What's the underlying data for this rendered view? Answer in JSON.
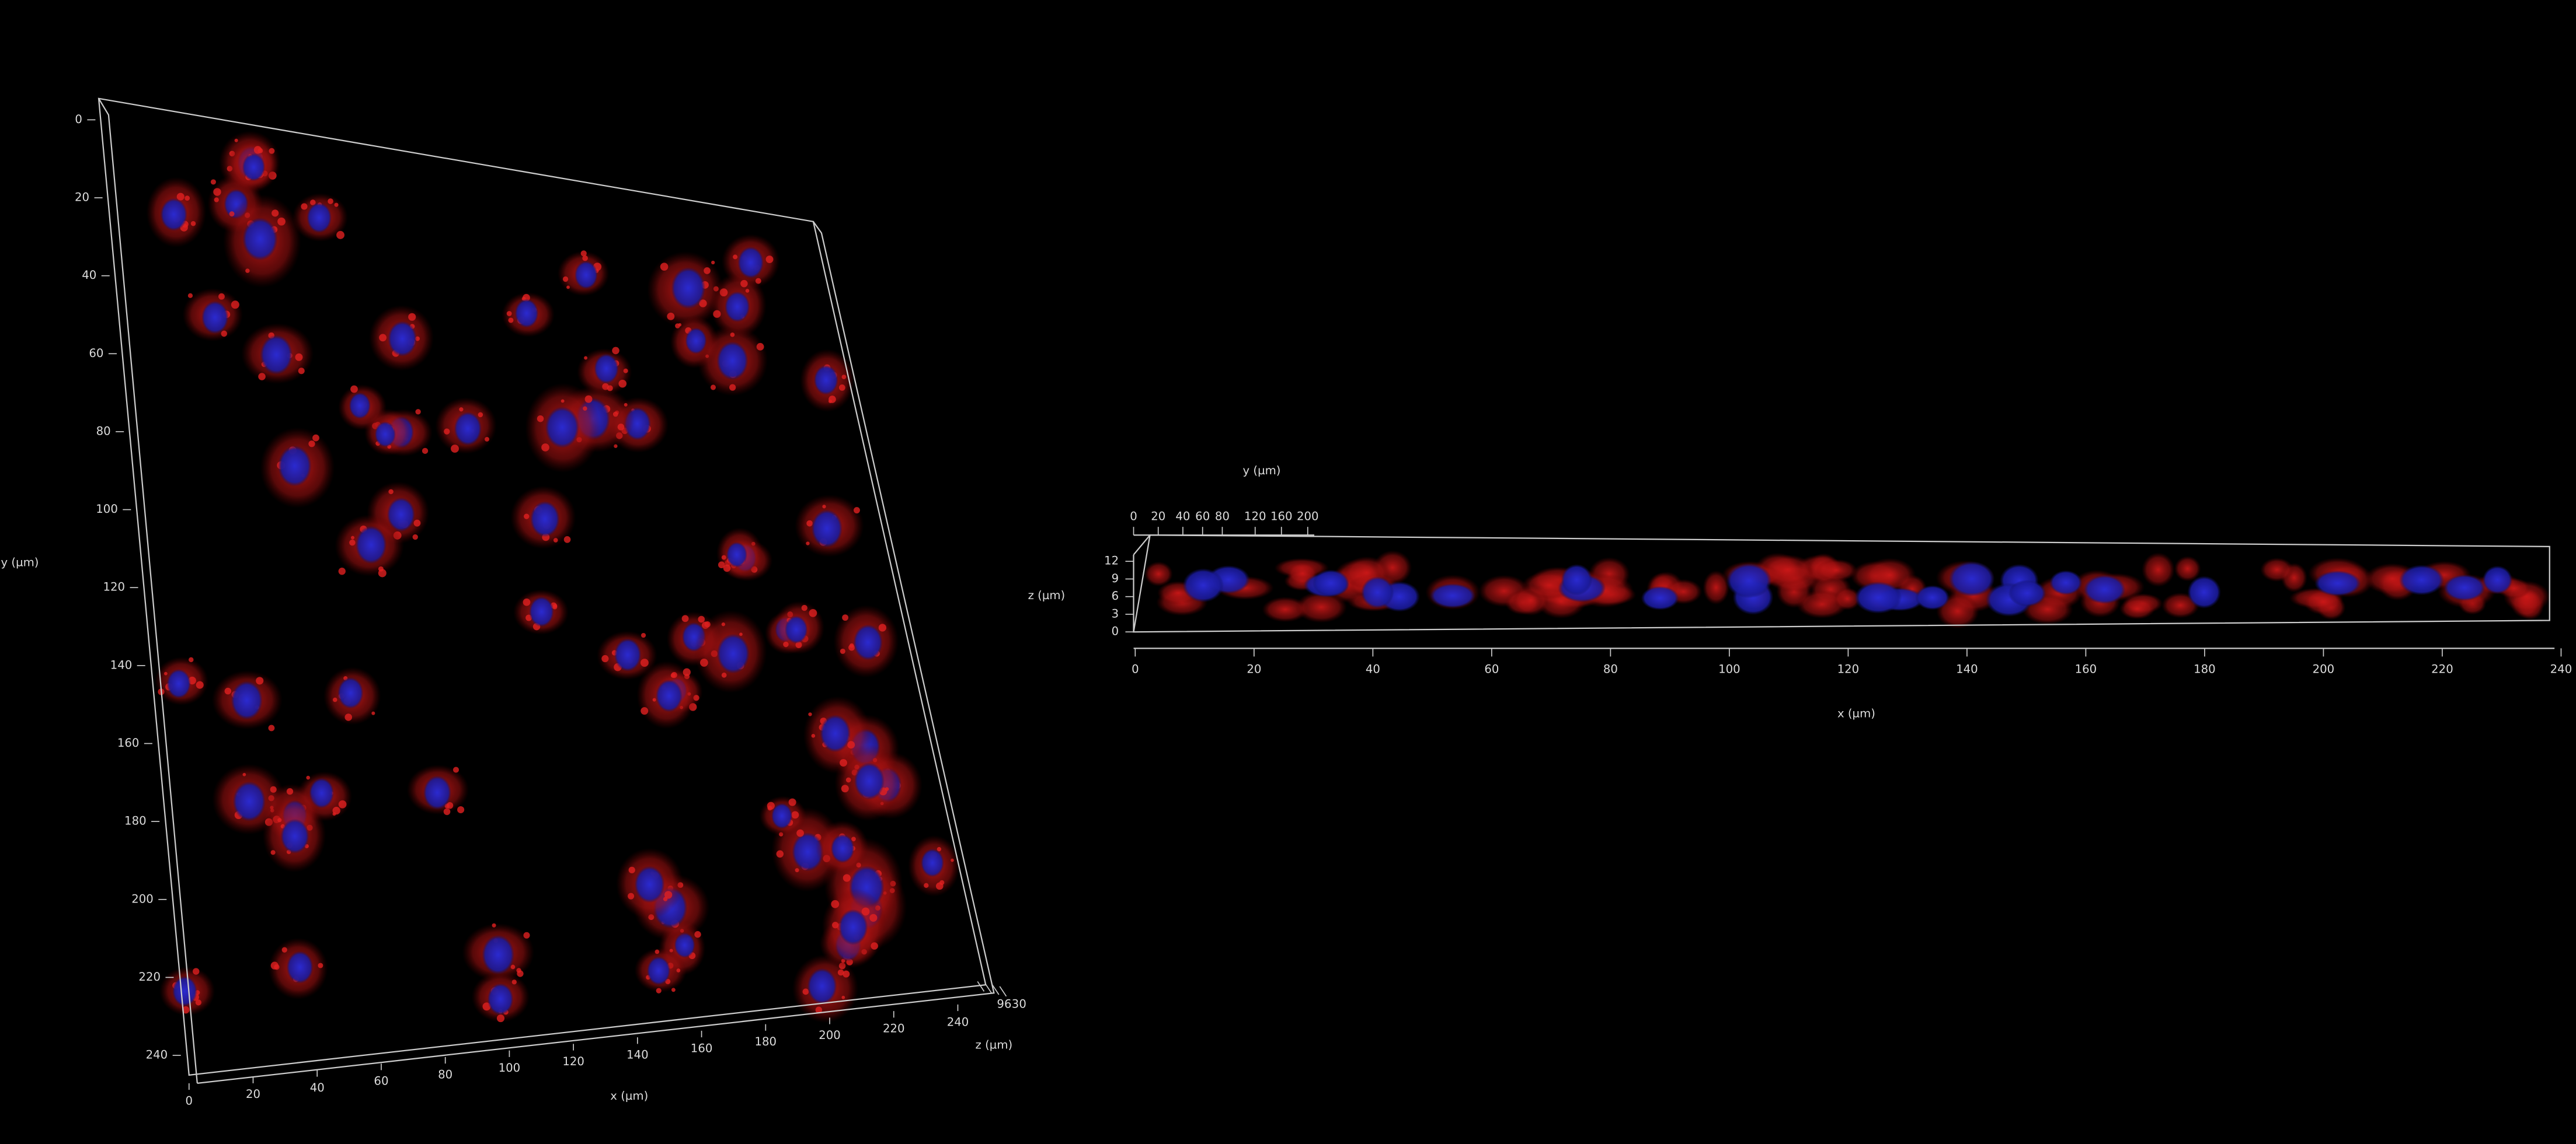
{
  "left_view": {
    "y_axis_label": "y (µm)",
    "x_axis_label": "x (µm)",
    "z_axis_label": "z (µm)",
    "y_ticks": [
      0,
      20,
      40,
      60,
      80,
      100,
      120,
      140,
      160,
      180,
      200,
      220,
      240
    ],
    "x_ticks": [
      0,
      20,
      40,
      60,
      80,
      100,
      120,
      140,
      160,
      180,
      200,
      220,
      240
    ],
    "z_ticks": [
      9,
      6,
      3,
      0
    ]
  },
  "right_view": {
    "y_axis_label": "y (µm)",
    "z_axis_label": "z (µm)",
    "x_axis_label": "x (µm)",
    "y_ticks": [
      0,
      20,
      40,
      60,
      80,
      120,
      160,
      200
    ],
    "z_ticks": [
      12,
      9,
      6,
      3,
      0
    ],
    "x_ticks": [
      0,
      20,
      40,
      60,
      80,
      100,
      120,
      140,
      160,
      180,
      200,
      220,
      240
    ]
  }
}
